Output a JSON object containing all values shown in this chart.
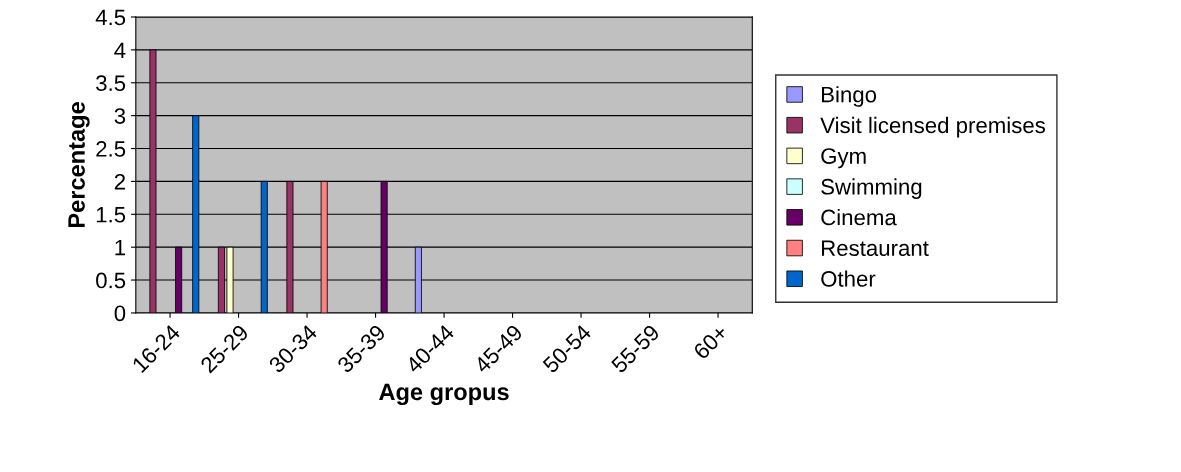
{
  "chart_data": {
    "type": "bar",
    "xlabel": "Age gropus",
    "ylabel": "Percentage",
    "categories": [
      "16-24",
      "25-29",
      "30-34",
      "35-39",
      "40-44",
      "45-49",
      "50-54",
      "55-59",
      "60+"
    ],
    "series": [
      {
        "name": "Bingo",
        "color": "#9999ff",
        "values": [
          null,
          null,
          null,
          null,
          1,
          null,
          null,
          null,
          null
        ]
      },
      {
        "name": "Visit licensed premises",
        "color": "#993366",
        "values": [
          4,
          1,
          2,
          null,
          null,
          null,
          null,
          null,
          null
        ]
      },
      {
        "name": "Gym",
        "color": "#ffffcc",
        "values": [
          null,
          1,
          null,
          null,
          null,
          null,
          null,
          null,
          null
        ]
      },
      {
        "name": "Swimming",
        "color": "#ccffff",
        "values": [
          null,
          null,
          null,
          null,
          null,
          null,
          null,
          null,
          null
        ]
      },
      {
        "name": "Cinema",
        "color": "#660066",
        "values": [
          1,
          null,
          null,
          2,
          null,
          null,
          null,
          null,
          null
        ]
      },
      {
        "name": "Restaurant",
        "color": "#ff8080",
        "values": [
          null,
          null,
          2,
          null,
          null,
          null,
          null,
          null,
          null
        ]
      },
      {
        "name": "Other",
        "color": "#0066cc",
        "values": [
          3,
          2,
          null,
          null,
          null,
          null,
          null,
          null,
          null
        ]
      }
    ],
    "ylim": [
      0,
      4.5
    ],
    "yticks": [
      0,
      0.5,
      1,
      1.5,
      2,
      2.5,
      3,
      3.5,
      4,
      4.5
    ],
    "grid": "y",
    "legend": "right"
  }
}
